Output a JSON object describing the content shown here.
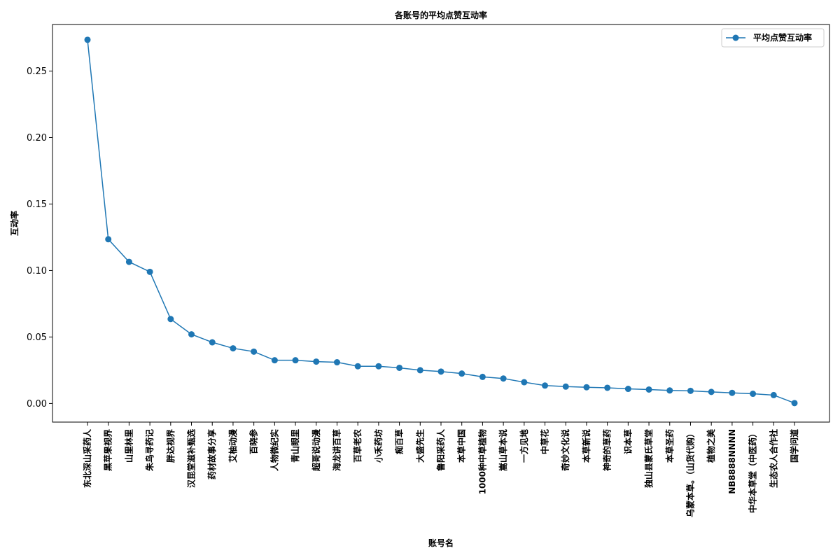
{
  "chart_data": {
    "type": "line",
    "title": "各账号的平均点赞互动率",
    "xlabel": "账号名",
    "ylabel": "互动率",
    "ylim": [
      -0.014,
      0.285
    ],
    "yticks": [
      0.0,
      0.05,
      0.1,
      0.15,
      0.2,
      0.25
    ],
    "ytick_labels": [
      "0.00",
      "0.05",
      "0.10",
      "0.15",
      "0.20",
      "0.25"
    ],
    "grid": false,
    "legend_position": "top-right",
    "categories": [
      "东北深山采药人",
      "黑苹果视界",
      "山里林里",
      "朱鸟寻药记",
      "胖达视界",
      "汉昆堂滋补甄选",
      "药材故事分享",
      "艾柚动漫",
      "百晓参",
      "人物微纪实",
      "青山眼里",
      "超哥说动漫",
      "海龙讲百草",
      "百草老农",
      "小禾药坊",
      "痴百草",
      "大盛先生",
      "鲁阳采药人",
      "本草中国",
      "1000种中草植物",
      "嵩山草本说",
      "一方见地",
      "中草花",
      "奇妙文化说",
      "本草新说",
      "神奇的草药",
      "识本草",
      "独山县蒙氏草堂",
      "本草圣药",
      "乌蒙本草。（山货代购）",
      "植物之美",
      "NB8888NNNN",
      "中华本草堂（中医药）",
      "生态农人合作社",
      "国学问道"
    ],
    "series": [
      {
        "name": "平均点赞互动率",
        "color": "#1f77b4",
        "values": [
          0.2735,
          0.1235,
          0.1065,
          0.099,
          0.0635,
          0.052,
          0.046,
          0.0415,
          0.039,
          0.0325,
          0.0325,
          0.0315,
          0.031,
          0.028,
          0.028,
          0.0268,
          0.025,
          0.024,
          0.0225,
          0.02,
          0.0188,
          0.016,
          0.0135,
          0.0127,
          0.0122,
          0.0118,
          0.011,
          0.0105,
          0.0098,
          0.0095,
          0.0087,
          0.008,
          0.0073,
          0.0063,
          0.0003
        ]
      }
    ]
  }
}
